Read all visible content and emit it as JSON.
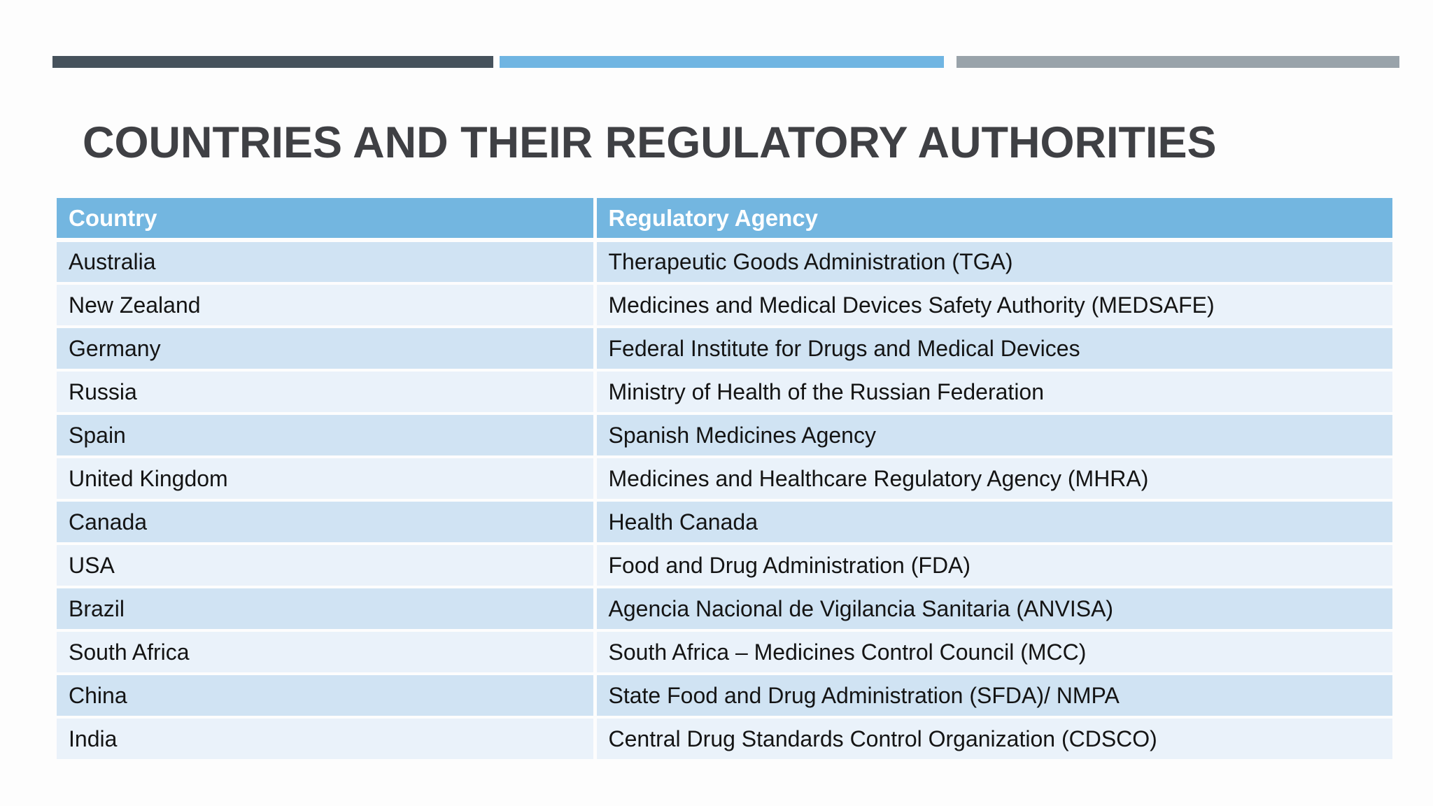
{
  "slide": {
    "title": "COUNTRIES AND THEIR REGULATORY AUTHORITIES"
  },
  "decor": {
    "top_bars": [
      {
        "name": "dark-bar",
        "color": "#46525c"
      },
      {
        "name": "blue-bar",
        "color": "#70b5e2"
      },
      {
        "name": "gray-bar",
        "color": "#99a3aa"
      }
    ]
  },
  "colors": {
    "header_bg": "#73b6e0",
    "header_text": "#ffffff",
    "row_odd_bg": "#d0e3f3",
    "row_even_bg": "#eaf2fa",
    "title_text": "#3f4044"
  },
  "table": {
    "headers": {
      "country": "Country",
      "agency": "Regulatory Agency"
    },
    "rows": [
      {
        "country": "Australia",
        "agency": "Therapeutic Goods Administration (TGA)"
      },
      {
        "country": "New Zealand",
        "agency": "Medicines and Medical Devices Safety Authority (MEDSAFE)"
      },
      {
        "country": "Germany",
        "agency": "Federal Institute for Drugs and Medical Devices"
      },
      {
        "country": "Russia",
        "agency": "Ministry of Health of the Russian Federation"
      },
      {
        "country": "Spain",
        "agency": "Spanish Medicines Agency"
      },
      {
        "country": "United Kingdom",
        "agency": "Medicines and Healthcare Regulatory Agency (MHRA)"
      },
      {
        "country": "Canada",
        "agency": "Health Canada"
      },
      {
        "country": "USA",
        "agency": "Food and Drug Administration (FDA)"
      },
      {
        "country": "Brazil",
        "agency": "Agencia Nacional de Vigilancia Sanitaria (ANVISA)"
      },
      {
        "country": "South Africa",
        "agency": "South Africa – Medicines Control Council (MCC)"
      },
      {
        "country": "China",
        "agency": "State Food and Drug Administration (SFDA)/ NMPA"
      },
      {
        "country": "India",
        "agency": "Central Drug Standards Control Organization (CDSCO)"
      }
    ]
  }
}
